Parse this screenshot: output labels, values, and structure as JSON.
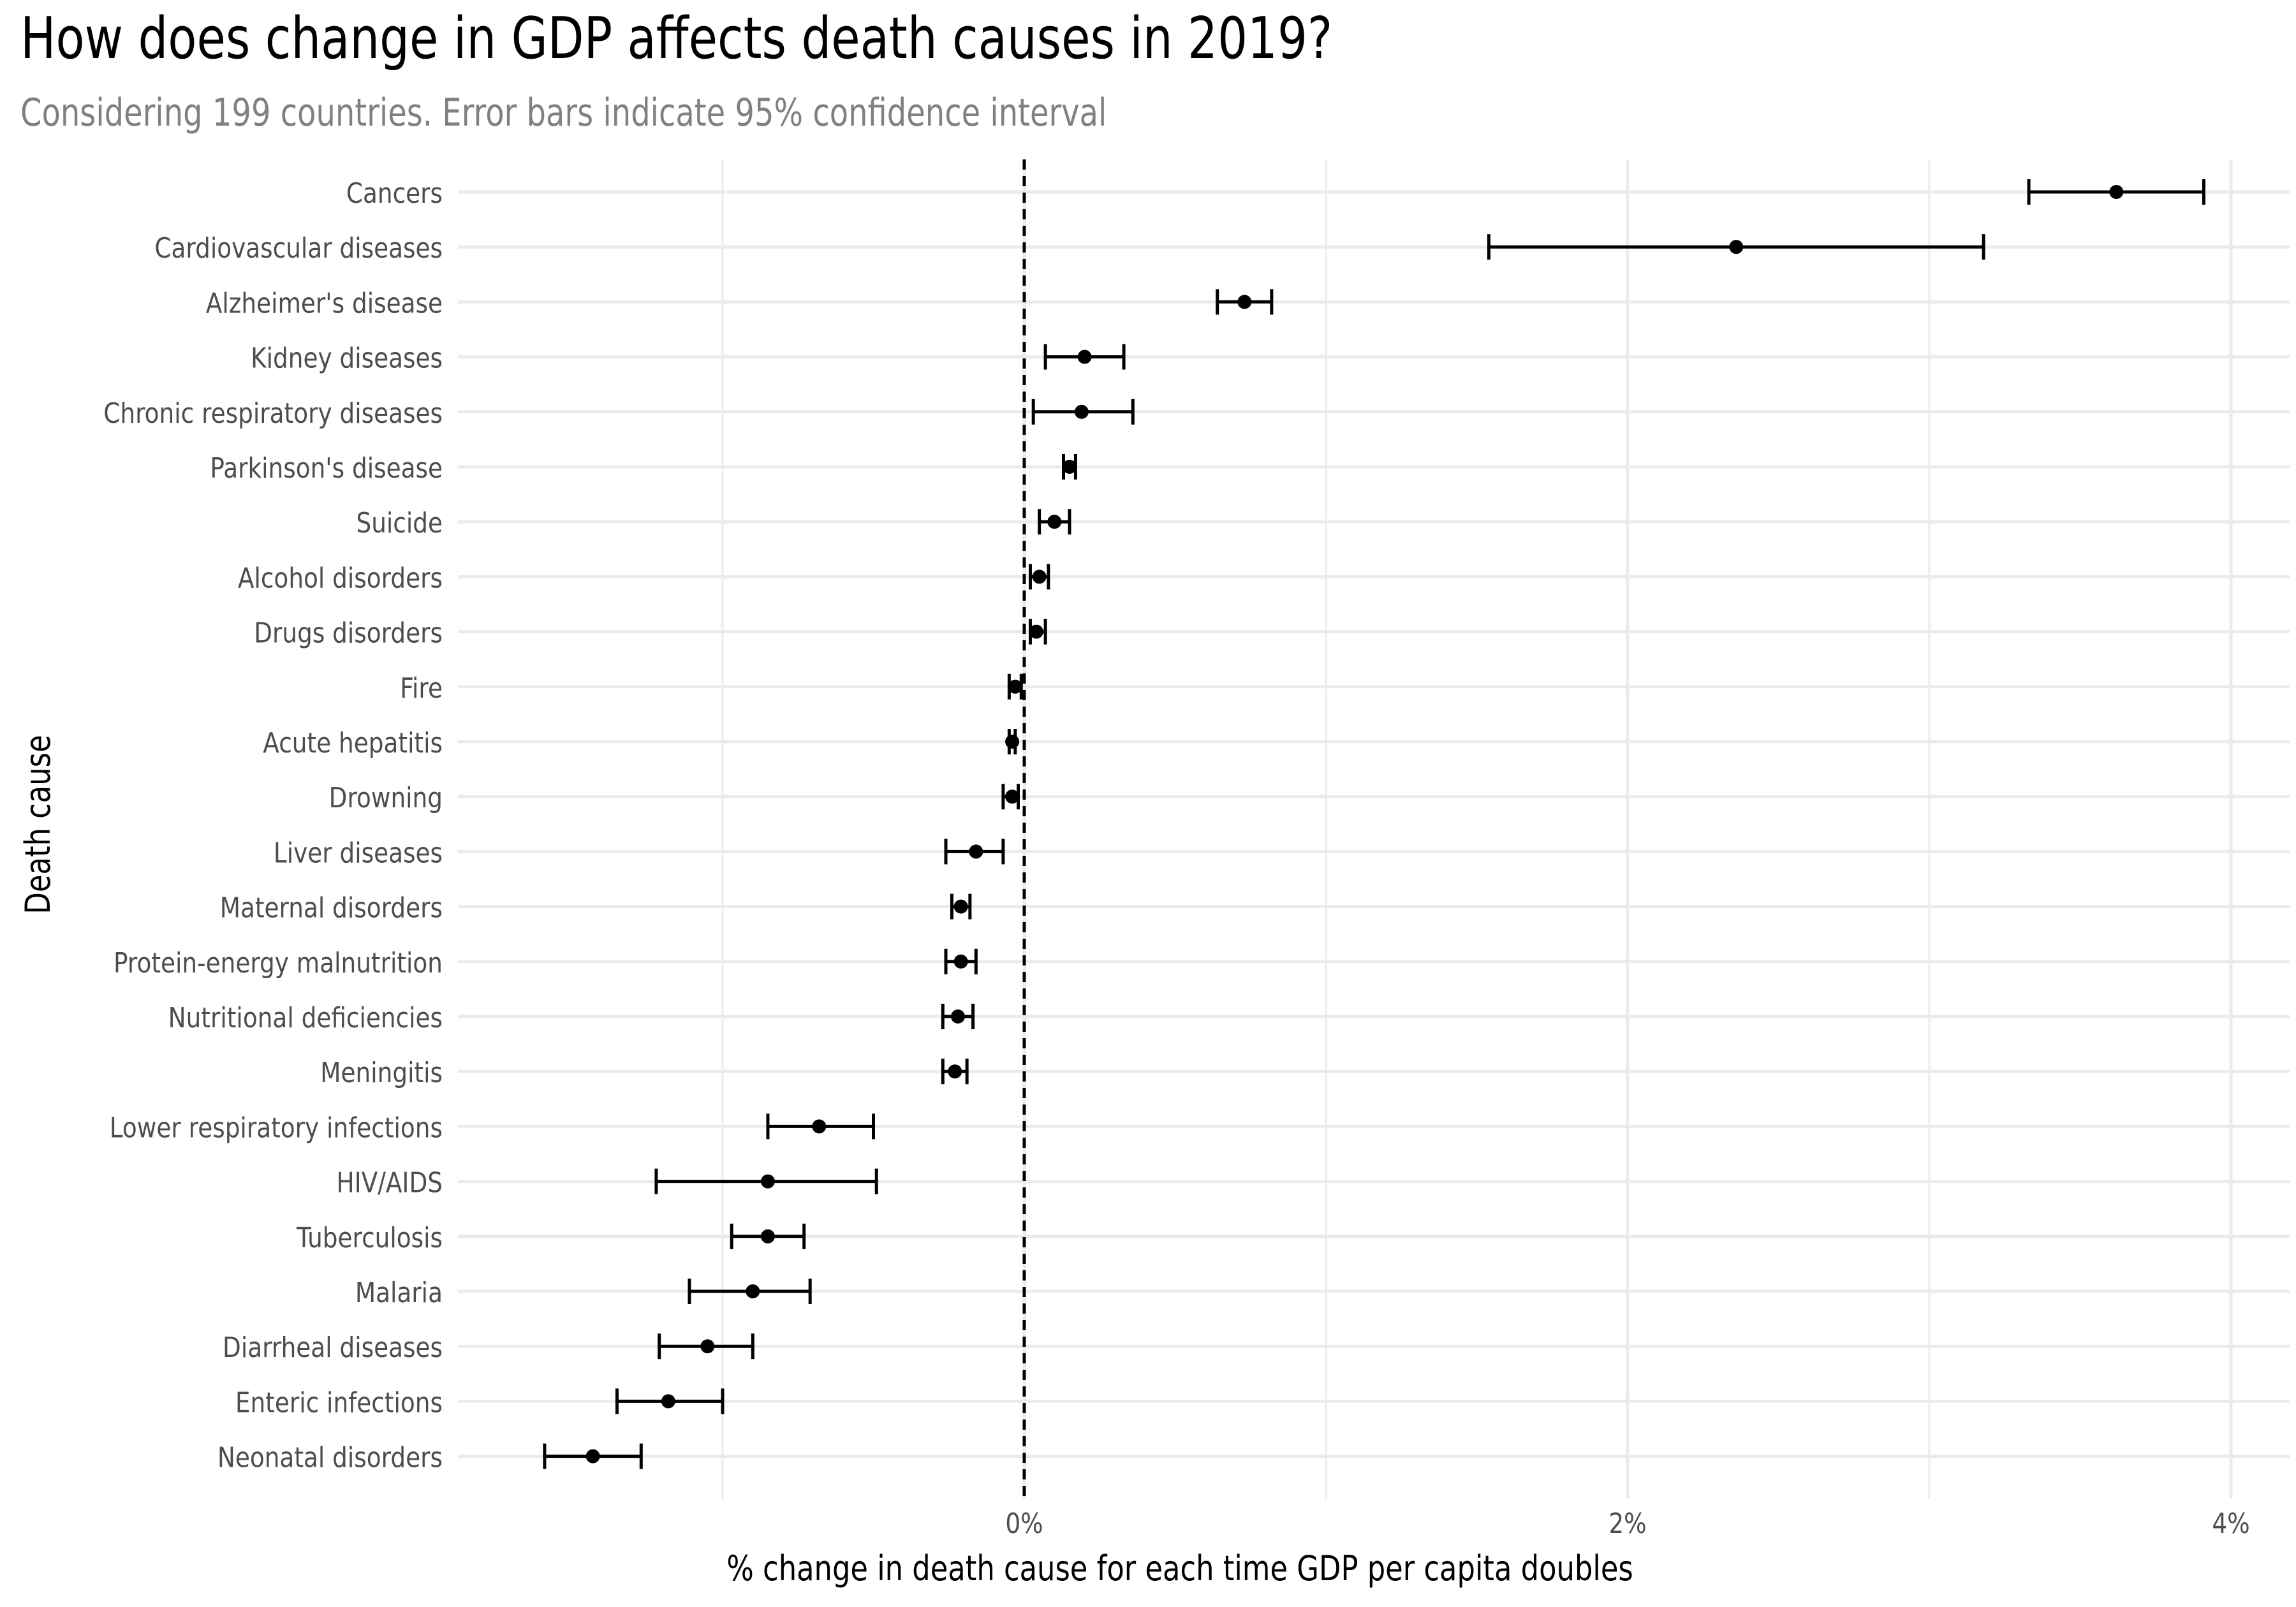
{
  "title": "How does change in GDP affects death causes in 2019?",
  "subtitle": "Considering 199 countries. Error bars indicate 95% confidence interval",
  "chart_data": {
    "type": "scatter",
    "subtype": "point-with-error-bars",
    "title": "How does change in GDP affects death causes in 2019?",
    "subtitle": "Considering 199 countries. Error bars indicate 95% confidence interval",
    "xlabel": "% change in death cause for each time GDP per capita doubles",
    "ylabel": "Death cause",
    "xlim": [
      -1.9,
      4.15
    ],
    "xticks": [
      {
        "value": 0,
        "label": "0%"
      },
      {
        "value": 2,
        "label": "2%"
      },
      {
        "value": 4,
        "label": "4%"
      }
    ],
    "minor_gridlines": [
      -1,
      1,
      3
    ],
    "reference_line": {
      "value": 0,
      "style": "dashed"
    },
    "grid": true,
    "legend": "none",
    "colors": {
      "point": "#000000",
      "grid": "#ebebeb",
      "subtitle": "#808080"
    },
    "categories": [
      "Cancers",
      "Cardiovascular diseases",
      "Alzheimer's disease",
      "Kidney diseases",
      "Chronic respiratory diseases",
      "Parkinson's disease",
      "Suicide",
      "Alcohol disorders",
      "Drugs disorders",
      "Fire",
      "Acute hepatitis",
      "Drowning",
      "Liver diseases",
      "Maternal disorders",
      "Protein-energy malnutrition",
      "Nutritional deficiencies",
      "Meningitis",
      "Lower respiratory infections",
      "HIV/AIDS",
      "Tuberculosis",
      "Malaria",
      "Diarrheal diseases",
      "Enteric infections",
      "Neonatal disorders"
    ],
    "estimate": [
      3.62,
      2.36,
      0.73,
      0.2,
      0.19,
      0.15,
      0.1,
      0.05,
      0.04,
      -0.03,
      -0.04,
      -0.04,
      -0.16,
      -0.21,
      -0.21,
      -0.22,
      -0.23,
      -0.68,
      -0.85,
      -0.85,
      -0.9,
      -1.05,
      -1.18,
      -1.43
    ],
    "lower": [
      3.33,
      1.54,
      0.64,
      0.07,
      0.03,
      0.13,
      0.05,
      0.02,
      0.02,
      -0.05,
      -0.05,
      -0.07,
      -0.26,
      -0.24,
      -0.26,
      -0.27,
      -0.27,
      -0.85,
      -1.22,
      -0.97,
      -1.11,
      -1.21,
      -1.35,
      -1.59
    ],
    "upper": [
      3.91,
      3.18,
      0.82,
      0.33,
      0.36,
      0.17,
      0.15,
      0.08,
      0.07,
      -0.01,
      -0.03,
      -0.02,
      -0.07,
      -0.18,
      -0.16,
      -0.17,
      -0.19,
      -0.5,
      -0.49,
      -0.73,
      -0.71,
      -0.9,
      -1.0,
      -1.27
    ]
  }
}
